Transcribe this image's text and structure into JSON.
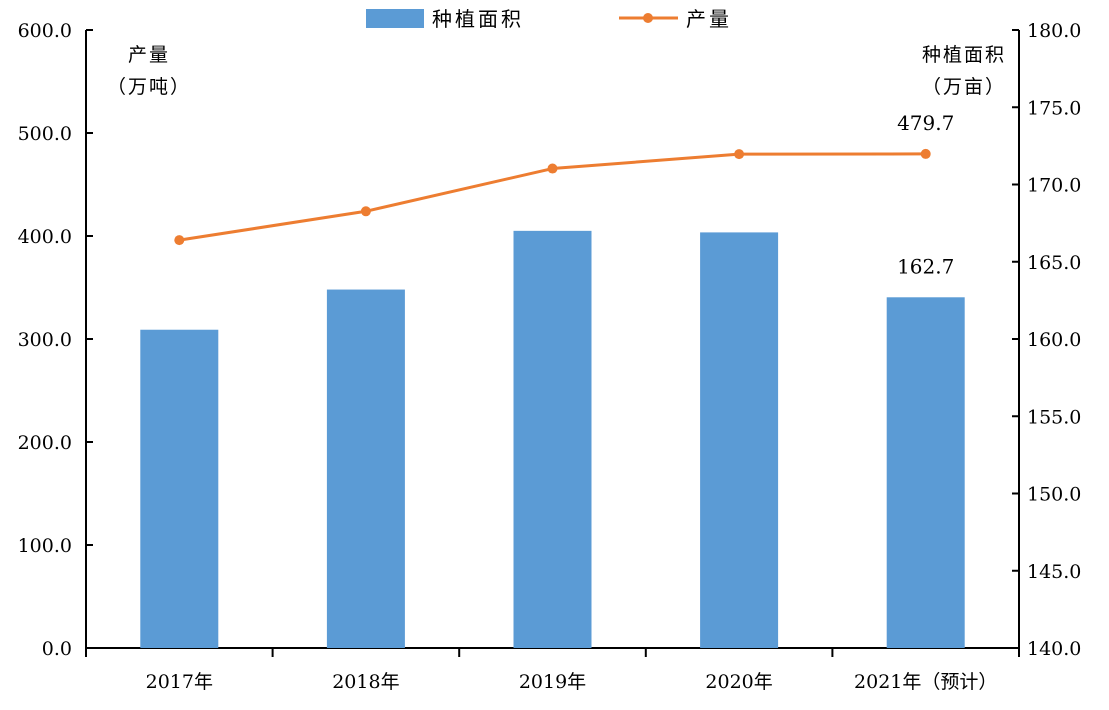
{
  "chart_data": {
    "type": "bar+line",
    "categories": [
      "2017年",
      "2018年",
      "2019年",
      "2020年",
      "2021年（预计）"
    ],
    "series": [
      {
        "name": "种植面积",
        "type": "bar",
        "axis": "right",
        "color": "#5B9BD5",
        "values": [
          160.6,
          163.2,
          167.0,
          166.9,
          162.7
        ]
      },
      {
        "name": "产量",
        "type": "line",
        "axis": "left",
        "color": "#ED7D31",
        "values": [
          396.0,
          424.0,
          465.5,
          479.5,
          479.7
        ]
      }
    ],
    "y_left": {
      "title_line1": "产量",
      "title_line2": "（万吨）",
      "min": 0,
      "max": 600,
      "step": 100,
      "ticks": [
        "0.0",
        "100.0",
        "200.0",
        "300.0",
        "400.0",
        "500.0",
        "600.0"
      ]
    },
    "y_right": {
      "title_line1": "种植面积",
      "title_line2": "（万亩）",
      "min": 140,
      "max": 180,
      "step": 5,
      "ticks": [
        "140.0",
        "145.0",
        "150.0",
        "155.0",
        "160.0",
        "165.0",
        "170.0",
        "175.0",
        "180.0"
      ]
    },
    "annotations": [
      {
        "series": "产量",
        "index": 4,
        "text": "479.7"
      },
      {
        "series": "种植面积",
        "index": 4,
        "text": "162.7"
      }
    ],
    "legend": {
      "position": "top-center",
      "items": [
        {
          "label": "种植面积",
          "kind": "bar"
        },
        {
          "label": "产量",
          "kind": "line"
        }
      ]
    },
    "grid": false
  }
}
